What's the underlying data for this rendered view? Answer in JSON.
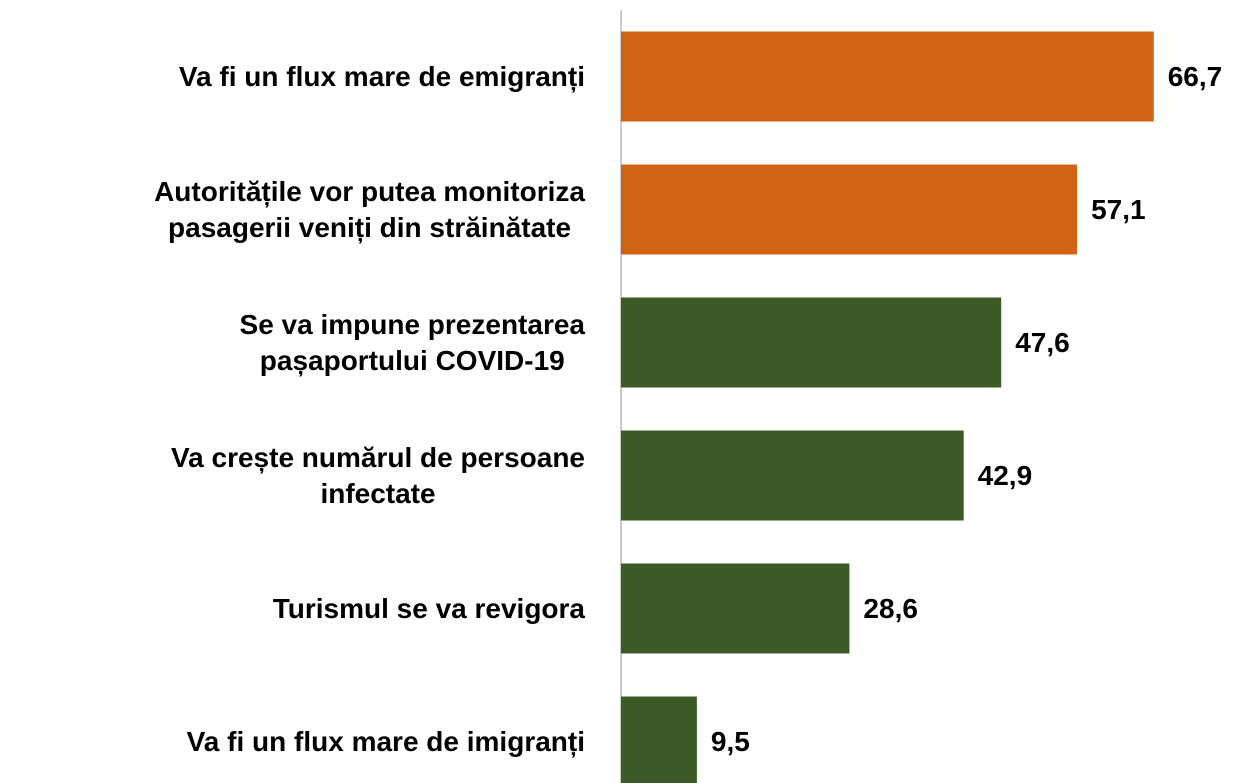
{
  "chart_data": {
    "type": "barh",
    "categories": [
      [
        "Va fi un flux mare de emigranți"
      ],
      [
        "Autoritățile vor putea monitoriza",
        "pasagerii veniți din străinătate"
      ],
      [
        "Se va impune prezentarea",
        "pașaportului COVID-19"
      ],
      [
        "Va crește numărul de persoane",
        "infectate"
      ],
      [
        "Turismul se va revigora"
      ],
      [
        "Va fi un flux mare de imigranți"
      ]
    ],
    "values": [
      66.7,
      57.1,
      47.6,
      42.9,
      28.6,
      9.5
    ],
    "value_labels": [
      "66,7",
      "57,1",
      "47,6",
      "42,9",
      "28,6",
      "9,5"
    ],
    "colors": [
      "#d06414",
      "#d06414",
      "#3b5a25",
      "#3b5a25",
      "#3b5a25",
      "#3b5a25"
    ],
    "xlim": [
      0,
      78
    ]
  }
}
